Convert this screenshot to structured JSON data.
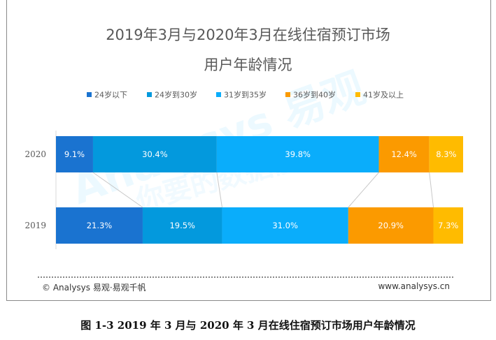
{
  "chart_data": {
    "type": "bar",
    "orientation": "horizontal",
    "stacked": true,
    "percent": true,
    "title_line1": "2019年3月与2020年3月在线住宿预订市场",
    "title_line2": "用户年龄情况",
    "categories": [
      "2020",
      "2019"
    ],
    "series": [
      {
        "name": "24岁以下",
        "color": "#1a73d0",
        "values": [
          9.1,
          21.3
        ],
        "labels": [
          "9.1%",
          "21.3%"
        ]
      },
      {
        "name": "24岁到30岁",
        "color": "#0399dd",
        "values": [
          30.4,
          19.5
        ],
        "labels": [
          "30.4%",
          "19.5%"
        ]
      },
      {
        "name": "31岁到35岁",
        "color": "#0aadfb",
        "values": [
          39.8,
          31.0
        ],
        "labels": [
          "39.8%",
          "31.0%"
        ]
      },
      {
        "name": "36岁到40岁",
        "color": "#fb9a00",
        "values": [
          12.4,
          20.9
        ],
        "labels": [
          "12.4%",
          "20.9%"
        ]
      },
      {
        "name": "41岁及以上",
        "color": "#ffbb00",
        "values": [
          8.3,
          7.3
        ],
        "labels": [
          "8.3%",
          "7.3%"
        ]
      }
    ],
    "xlim": [
      0,
      100
    ],
    "legend_position": "top",
    "series_lines": true,
    "grid": false
  },
  "footer": {
    "source": "© Analysys 易观·易观千帆",
    "url": "www.analysys.cn"
  },
  "watermark": {
    "brand": "Analysys 易观",
    "slogan": "你要的数据能力"
  },
  "caption": "图  1-3  2019 年 3 月与 2020 年 3 月在线住宿预订市场用户年龄情况"
}
